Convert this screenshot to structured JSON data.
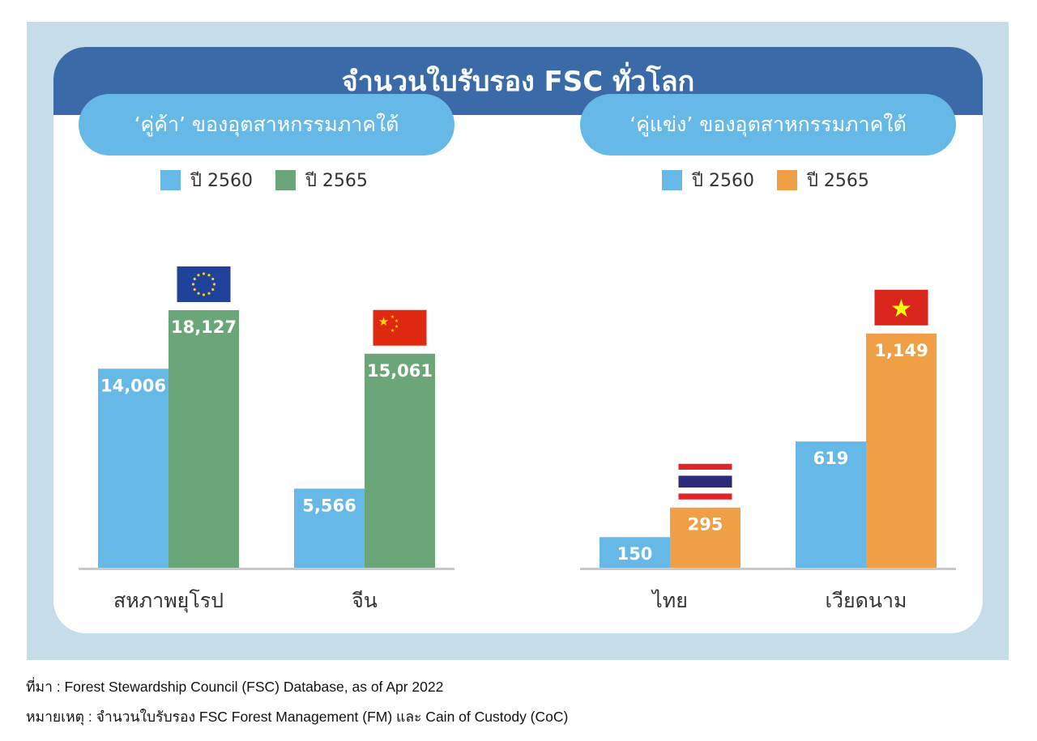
{
  "header": {
    "title": "จำนวนใบรับรอง FSC ทั่วโลก"
  },
  "panels": [
    {
      "title": "‘คู่ค้า’ ของอุตสาหกรรมภาคใต้",
      "legend": [
        {
          "label": "ปี 2560",
          "color": "#66b8e6"
        },
        {
          "label": "ปี 2565",
          "color": "#6aa678"
        }
      ]
    },
    {
      "title": "‘คู่แข่ง’ ของอุตสาหกรรมภาคใต้",
      "legend": [
        {
          "label": "ปี 2560",
          "color": "#66b8e6"
        },
        {
          "label": "ปี 2565",
          "color": "#ef9f45"
        }
      ]
    }
  ],
  "chart_data": [
    {
      "type": "bar",
      "title": "‘คู่ค้า’ ของอุตสาหกรรมภาคใต้",
      "categories": [
        "สหภาพยุโรป",
        "จีน"
      ],
      "flags": [
        "eu-flag",
        "china-flag"
      ],
      "series": [
        {
          "name": "ปี 2560",
          "values": [
            14006,
            5566
          ],
          "labels": [
            "14,006",
            "5,566"
          ],
          "color": "#66b8e6"
        },
        {
          "name": "ปี 2565",
          "values": [
            18127,
            15061
          ],
          "labels": [
            "18,127",
            "15,061"
          ],
          "color": "#6aa678"
        }
      ],
      "ylim": [
        0,
        21090
      ],
      "legend": "top-center",
      "grid": false
    },
    {
      "type": "bar",
      "title": "‘คู่แข่ง’ ของอุตสาหกรรมภาคใต้",
      "categories": [
        "ไทย",
        "เวียดนาม"
      ],
      "flags": [
        "thailand-flag",
        "vietnam-flag"
      ],
      "series": [
        {
          "name": "ปี 2560",
          "values": [
            150,
            619
          ],
          "labels": [
            "150",
            "619"
          ],
          "color": "#66b8e6"
        },
        {
          "name": "ปี 2565",
          "values": [
            295,
            1149
          ],
          "labels": [
            "295",
            "1,149"
          ],
          "color": "#ef9f45"
        }
      ],
      "ylim": [
        0,
        1470
      ],
      "legend": "top-center",
      "grid": false
    }
  ],
  "footer": {
    "source": "ที่มา : Forest Stewardship Council (FSC) Database, as of Apr 2022",
    "note": "หมายเหตุ : จำนวนใบรับรอง FSC Forest Management (FM) และ Cain of Custody (CoC)"
  }
}
